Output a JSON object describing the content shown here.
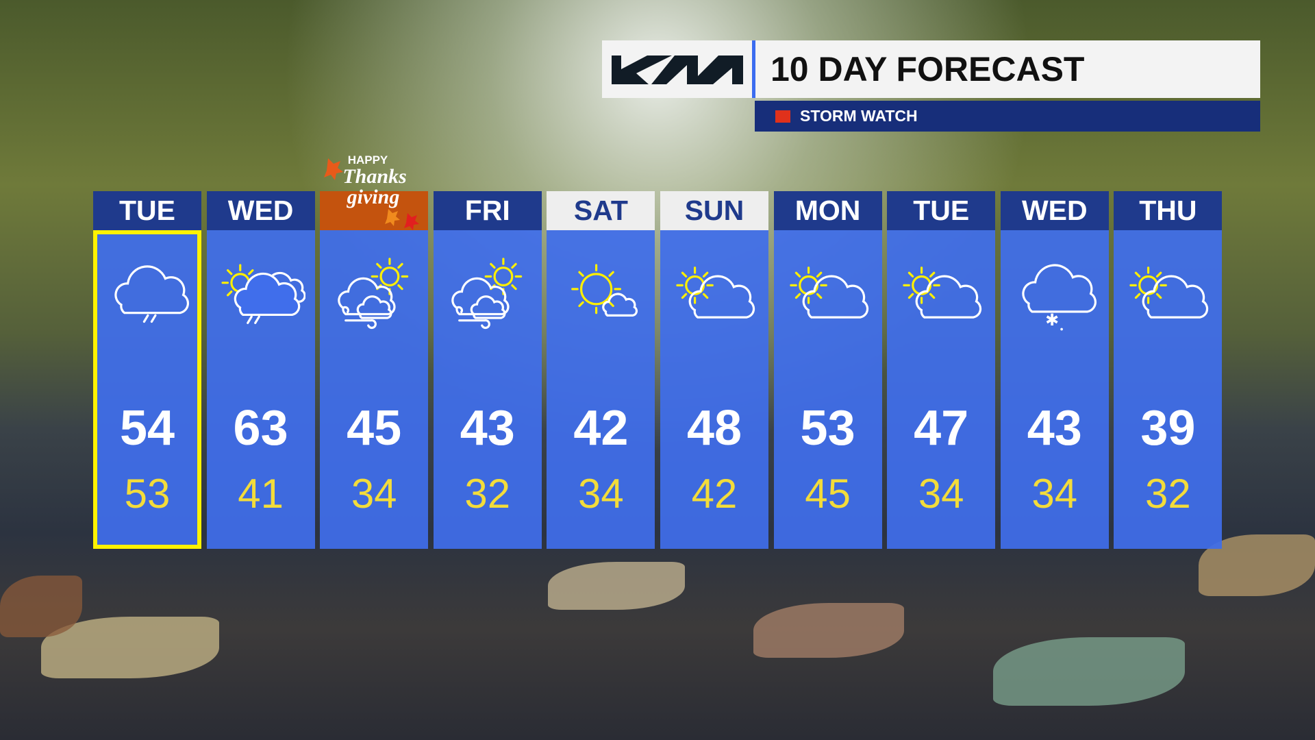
{
  "brand": {
    "logo_text": "KIA"
  },
  "header": {
    "title": "10 DAY FORECAST",
    "alert_label": "STORM WATCH",
    "alert_color": "#e0311b",
    "accent": "#3b6cf0"
  },
  "holiday_badge": {
    "line1": "HAPPY",
    "line2": "Thanks",
    "line3": "giving"
  },
  "days": [
    {
      "day": "TUE",
      "high": "54",
      "low": "53",
      "icon": "cloud-rain-icon",
      "selected": true
    },
    {
      "day": "WED",
      "high": "63",
      "low": "41",
      "icon": "partly-cloudy-rain-icon"
    },
    {
      "day": "",
      "high": "45",
      "low": "34",
      "icon": "partly-cloudy-windy-icon",
      "holiday": true
    },
    {
      "day": "FRI",
      "high": "43",
      "low": "32",
      "icon": "partly-cloudy-windy-icon"
    },
    {
      "day": "SAT",
      "high": "42",
      "low": "34",
      "icon": "mostly-sunny-icon",
      "light": true
    },
    {
      "day": "SUN",
      "high": "48",
      "low": "42",
      "icon": "partly-cloudy-icon",
      "light": true
    },
    {
      "day": "MON",
      "high": "53",
      "low": "45",
      "icon": "partly-cloudy-icon"
    },
    {
      "day": "TUE",
      "high": "47",
      "low": "34",
      "icon": "partly-cloudy-icon"
    },
    {
      "day": "WED",
      "high": "43",
      "low": "34",
      "icon": "cloud-snow-icon"
    },
    {
      "day": "THU",
      "high": "39",
      "low": "32",
      "icon": "partly-cloudy-icon"
    }
  ]
}
